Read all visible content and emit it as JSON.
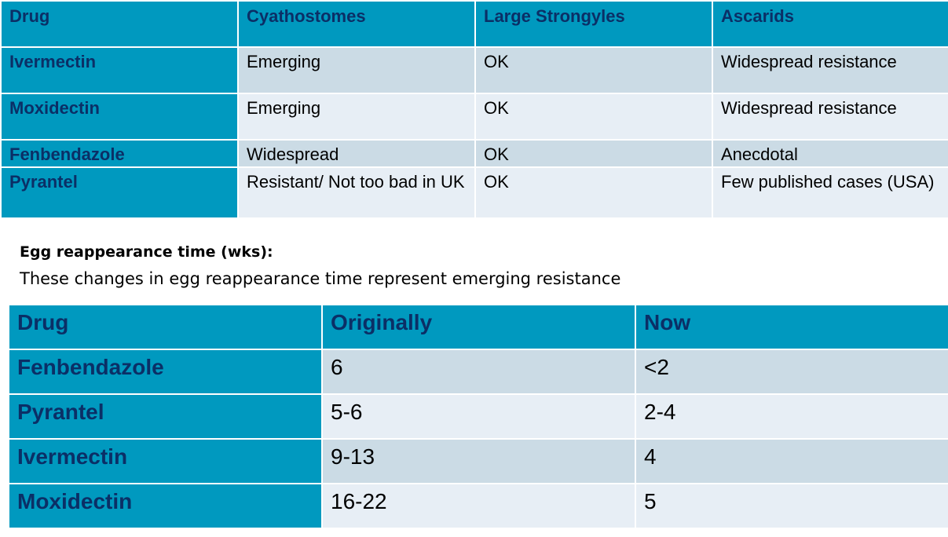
{
  "resistance_table": {
    "headers": [
      "Drug",
      "Cyathostomes",
      "Large Strongyles",
      "Ascarids"
    ],
    "rows": [
      [
        "Ivermectin",
        "Emerging",
        "OK",
        "Widespread resistance"
      ],
      [
        "Moxidectin",
        "Emerging",
        "OK",
        "Widespread resistance"
      ],
      [
        "Fenbendazole",
        "Widespread",
        "OK",
        "Anecdotal"
      ],
      [
        "Pyrantel",
        "Resistant/ Not too bad in UK",
        "OK",
        "Few published cases (USA)"
      ]
    ]
  },
  "egg_section": {
    "heading": "Egg reappearance time (wks):",
    "subtitle": "These changes in egg reappearance time represent emerging resistance"
  },
  "egg_table": {
    "headers": [
      "Drug",
      "Originally",
      "Now"
    ],
    "rows": [
      [
        "Fenbendazole",
        "6",
        "<2"
      ],
      [
        "Pyrantel",
        "5-6",
        "2-4"
      ],
      [
        "Ivermectin",
        "9-13",
        "4"
      ],
      [
        "Moxidectin",
        "16-22",
        "5"
      ]
    ]
  },
  "colors": {
    "header_bg": "#0099bf",
    "header_text": "#0b2f66",
    "row_odd": "#cbdbe5",
    "row_even": "#e7eef5"
  }
}
